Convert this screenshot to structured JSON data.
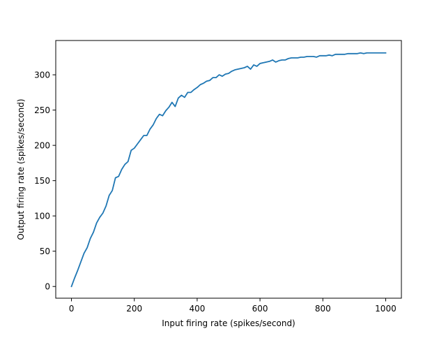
{
  "chart_data": {
    "type": "line",
    "title": "",
    "xlabel": "Input firing rate (spikes/second)",
    "ylabel": "Output firing rate (spikes/second)",
    "xlim": [
      -50,
      1050
    ],
    "ylim": [
      -16.6,
      348.6
    ],
    "xticks": [
      0,
      200,
      400,
      600,
      800,
      1000
    ],
    "yticks": [
      0,
      50,
      100,
      150,
      200,
      250,
      300
    ],
    "grid": false,
    "legend": "none",
    "series": [
      {
        "color": "#1f77b4",
        "x": [
          0,
          10,
          20,
          30,
          40,
          50,
          60,
          70,
          80,
          90,
          100,
          110,
          120,
          130,
          140,
          150,
          160,
          170,
          180,
          190,
          200,
          210,
          220,
          230,
          240,
          250,
          260,
          270,
          280,
          290,
          300,
          310,
          320,
          330,
          340,
          350,
          360,
          370,
          380,
          390,
          400,
          410,
          420,
          430,
          440,
          450,
          460,
          470,
          480,
          490,
          500,
          510,
          520,
          530,
          540,
          550,
          560,
          570,
          580,
          590,
          600,
          610,
          620,
          630,
          640,
          650,
          660,
          670,
          680,
          690,
          700,
          710,
          720,
          730,
          740,
          750,
          760,
          770,
          780,
          790,
          800,
          810,
          820,
          830,
          840,
          850,
          860,
          870,
          880,
          890,
          900,
          910,
          920,
          930,
          940,
          950,
          960,
          970,
          980,
          990,
          1000
        ],
        "y": [
          0,
          12,
          23,
          35,
          47,
          55,
          68,
          77,
          90,
          98,
          104,
          114,
          129,
          136,
          154,
          156,
          166,
          173,
          177,
          193,
          196,
          202,
          208,
          214,
          214,
          223,
          229,
          238,
          244,
          242,
          249,
          254,
          261,
          255,
          267,
          271,
          268,
          275,
          275,
          279,
          282,
          286,
          288,
          291,
          292,
          296,
          296,
          300,
          298,
          301,
          302,
          305,
          307,
          308,
          309,
          310,
          312,
          308,
          314,
          312,
          316,
          317,
          318,
          319,
          321,
          318,
          320,
          321,
          321,
          323,
          324,
          324,
          324,
          325,
          325,
          326,
          326,
          326,
          325,
          327,
          327,
          327,
          328,
          327,
          329,
          329,
          329,
          329,
          330,
          330,
          330,
          330,
          331,
          330,
          331,
          331,
          331,
          331,
          331,
          331,
          331
        ]
      }
    ]
  }
}
